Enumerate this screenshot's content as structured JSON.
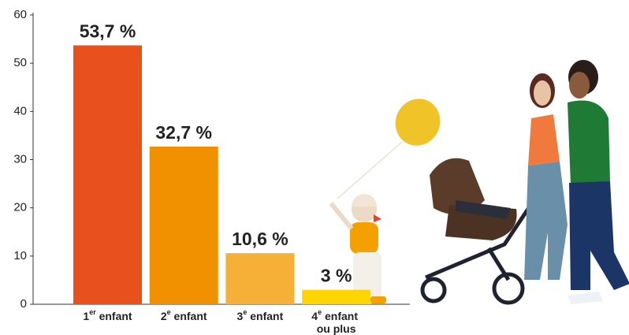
{
  "chart_data": {
    "type": "bar",
    "categories": [
      "1er enfant",
      "2e enfant",
      "3e enfant",
      "4e enfant ou plus"
    ],
    "values": [
      53.7,
      32.7,
      10.6,
      3
    ],
    "value_labels": [
      "53,7 %",
      "32,7 %",
      "10,6 %",
      "3 %"
    ],
    "colors": [
      "#e8501e",
      "#f29100",
      "#f7b037",
      "#ffd500"
    ],
    "ylim": [
      0,
      60
    ],
    "yticks": [
      0,
      10,
      20,
      30,
      40,
      50,
      60
    ],
    "grid": false
  }
}
